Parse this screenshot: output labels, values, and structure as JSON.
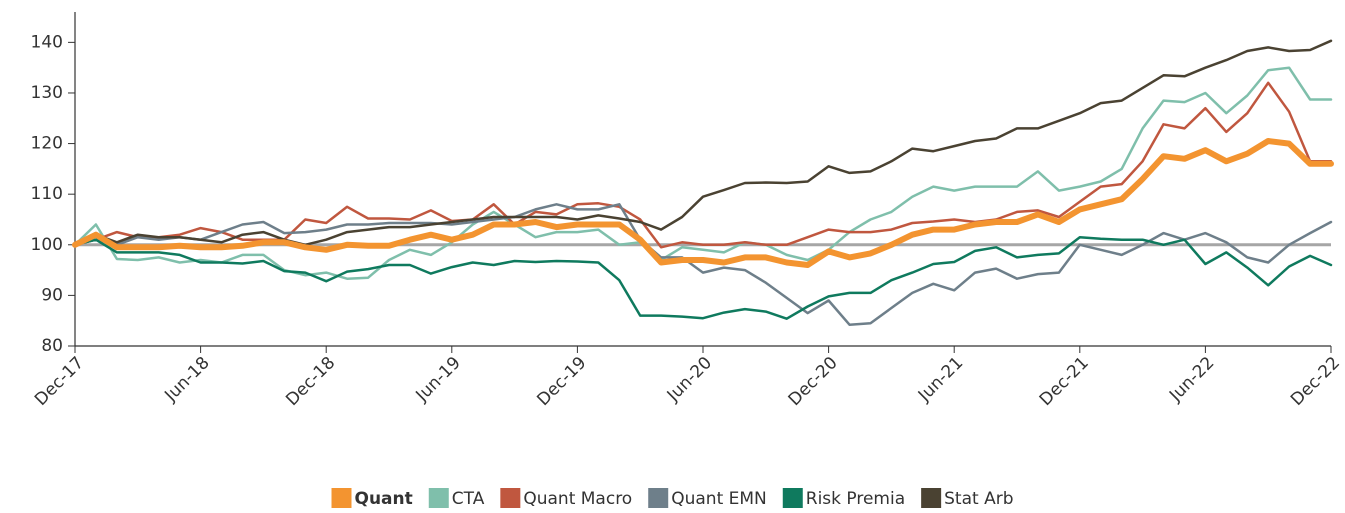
{
  "chart_data": {
    "type": "line",
    "categories": [
      "Dec-17",
      null,
      null,
      null,
      null,
      null,
      "Jun-18",
      null,
      null,
      null,
      null,
      null,
      "Dec-18",
      null,
      null,
      null,
      null,
      null,
      "Jun-19",
      null,
      null,
      null,
      null,
      null,
      "Dec-19",
      null,
      null,
      null,
      null,
      null,
      "Jun-20",
      null,
      null,
      null,
      null,
      null,
      "Dec-20",
      null,
      null,
      null,
      null,
      null,
      "Jun-21",
      null,
      null,
      null,
      null,
      null,
      "Dec-21",
      null,
      null,
      null,
      null,
      null,
      "Jun-22",
      null,
      null,
      null,
      null,
      null,
      "Dec-22"
    ],
    "ylim": [
      80,
      146
    ],
    "yticks": [
      80,
      90,
      100,
      110,
      120,
      130,
      140
    ],
    "baseline": 100,
    "series": [
      {
        "name": "Quant",
        "color": "#f39430",
        "width": 6,
        "bold": true,
        "values": [
          100,
          102,
          99.5,
          99.5,
          99.5,
          99.8,
          99.5,
          99.5,
          99.8,
          100.5,
          100.5,
          99.5,
          99,
          100,
          99.8,
          99.8,
          101,
          102,
          101,
          102,
          104,
          104,
          104.5,
          103.5,
          104,
          104,
          104,
          101,
          96.5,
          97,
          97,
          96.5,
          97.5,
          97.5,
          96.5,
          96,
          98.7,
          97.5,
          98.3,
          100,
          102,
          103,
          103,
          104,
          104.5,
          104.5,
          106,
          104.5,
          107,
          108,
          109,
          113,
          117.5,
          117,
          118.7,
          116.5,
          118,
          120.5,
          120,
          116,
          116
        ]
      },
      {
        "name": "CTA",
        "color": "#7fbfab",
        "width": 2.5,
        "values": [
          100,
          104,
          97.2,
          97,
          97.5,
          96.5,
          97,
          96.5,
          98,
          98,
          95,
          94,
          94.5,
          93.3,
          93.5,
          97,
          99,
          98,
          100.5,
          104,
          106.5,
          104,
          101.5,
          102.5,
          102.5,
          103,
          100,
          100.5,
          97,
          99.5,
          99,
          98.5,
          100.5,
          100,
          98,
          97,
          99,
          102.5,
          105,
          106.5,
          109.5,
          111.5,
          110.7,
          111.5,
          111.5,
          111.5,
          114.5,
          110.7,
          111.5,
          112.5,
          115,
          123,
          128.5,
          128.2,
          130,
          126,
          129.5,
          134.5,
          135,
          128.7,
          128.7
        ]
      },
      {
        "name": "Quant Macro",
        "color": "#c0573f",
        "width": 2.5,
        "values": [
          100,
          101,
          102.5,
          101.5,
          101.5,
          102,
          103.3,
          102.5,
          101,
          101,
          101,
          105,
          104.3,
          107.5,
          105.2,
          105.2,
          105,
          106.8,
          104.7,
          105,
          108,
          104,
          106.5,
          106,
          108,
          108.2,
          107.5,
          105,
          99.5,
          100.5,
          100,
          100,
          100.5,
          100,
          100,
          101.5,
          103,
          102.5,
          102.5,
          103,
          104.3,
          104.6,
          105,
          104.5,
          105,
          106.5,
          106.8,
          105.5,
          108.5,
          111.5,
          112,
          116.5,
          123.8,
          123,
          127,
          122.3,
          126,
          132,
          126.3,
          116.5,
          116.5
        ]
      },
      {
        "name": "Quant EMN",
        "color": "#6e7f8a",
        "width": 2.5,
        "values": [
          100,
          101,
          100,
          101.5,
          101,
          101.5,
          101,
          102.5,
          104,
          104.5,
          102.3,
          102.5,
          103,
          104,
          104,
          104.3,
          104.3,
          104.3,
          104,
          104.5,
          105,
          105.5,
          107,
          108,
          107,
          107,
          108,
          101,
          97.5,
          97.5,
          94.5,
          95.5,
          95,
          92.5,
          89.5,
          86.5,
          89,
          84.2,
          84.5,
          87.5,
          90.5,
          92.3,
          91,
          94.5,
          95.3,
          93.3,
          94.2,
          94.5,
          100,
          99,
          98,
          100,
          102.3,
          101,
          102.3,
          100.5,
          97.5,
          96.5,
          100,
          102.3,
          104.5
        ]
      },
      {
        "name": "Risk Premia",
        "color": "#0f7a5e",
        "width": 2.5,
        "values": [
          100,
          101,
          98.5,
          98.5,
          98.5,
          98,
          96.5,
          96.5,
          96.3,
          96.8,
          94.8,
          94.5,
          92.8,
          94.7,
          95.2,
          96,
          96,
          94.3,
          95.6,
          96.5,
          96,
          96.8,
          96.6,
          96.8,
          96.7,
          96.5,
          93,
          86,
          86,
          85.8,
          85.5,
          86.6,
          87.3,
          86.8,
          85.4,
          87.8,
          89.8,
          90.5,
          90.5,
          93,
          94.5,
          96.2,
          96.6,
          98.8,
          99.5,
          97.5,
          98,
          98.3,
          101.5,
          101.2,
          101,
          101,
          100,
          101,
          96.2,
          98.5,
          95.5,
          92,
          95.7,
          97.8,
          96
        ]
      },
      {
        "name": "Stat Arb",
        "color": "#4a4232",
        "width": 2.5,
        "values": [
          100,
          102,
          100.5,
          102,
          101.5,
          101.5,
          101,
          100.5,
          102,
          102.5,
          101,
          100,
          101,
          102.5,
          103,
          103.5,
          103.5,
          104,
          104.5,
          105,
          105.5,
          105.5,
          105.5,
          105.5,
          105,
          105.8,
          105.2,
          104.5,
          103,
          105.5,
          109.5,
          110.8,
          112.2,
          112.3,
          112.2,
          112.5,
          115.5,
          114.2,
          114.5,
          116.5,
          119,
          118.5,
          119.5,
          120.5,
          121,
          123,
          123,
          124.5,
          126,
          128,
          128.5,
          131,
          133.5,
          133.3,
          135,
          136.5,
          138.3,
          139,
          138.3,
          138.5,
          140.3
        ]
      }
    ]
  }
}
